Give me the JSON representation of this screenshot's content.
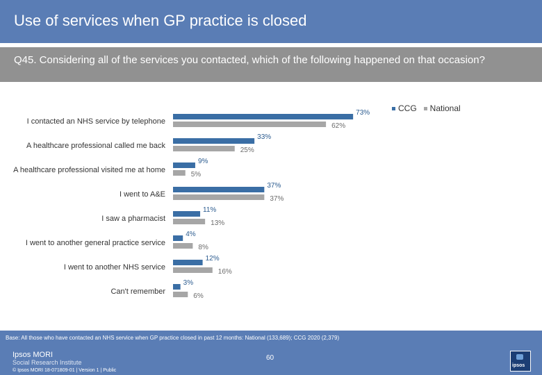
{
  "header": {
    "title": "Use of services when GP practice is closed"
  },
  "question": {
    "text": "Q45. Considering all of the services you contacted, which of the following happened on that occasion?"
  },
  "legend": {
    "ccg_label": "CCG",
    "national_label": "National"
  },
  "colors": {
    "header_bg": "#5a7db5",
    "question_bg": "#919191",
    "ccg": "#3a6ea5",
    "national": "#a6a6a6",
    "ccg_text": "#2b5b8f",
    "national_text": "#6b6b6b"
  },
  "chart_data": {
    "type": "bar",
    "orientation": "horizontal",
    "categories": [
      "I contacted an NHS service by telephone",
      "A healthcare professional called me back",
      "A healthcare professional visited me at home",
      "I went to A&E",
      "I saw a pharmacist",
      "I went to another general practice service",
      "I went to another NHS service",
      "Can't remember"
    ],
    "series": [
      {
        "name": "CCG",
        "values": [
          73,
          33,
          9,
          37,
          11,
          4,
          12,
          3
        ],
        "labels": [
          "73%",
          "33%",
          "9%",
          "37%",
          "11%",
          "4%",
          "12%",
          "3%"
        ]
      },
      {
        "name": "National",
        "values": [
          62,
          25,
          5,
          37,
          13,
          8,
          16,
          6
        ],
        "labels": [
          "62%",
          "25%",
          "5%",
          "37%",
          "13%",
          "8%",
          "16%",
          "6%"
        ]
      }
    ],
    "xlim": [
      0,
      100
    ],
    "grid": false,
    "legend": "top-right"
  },
  "footer": {
    "base_note": "Base: All those who have contacted an NHS service when GP practice closed in past 12 months: National (133,689); CCG 2020 (2,379)",
    "brand_name": "Ipsos MORI",
    "brand_sub": "Social Research Institute",
    "copyright": "© Ipsos MORI     18-071809-01 | Version 1 | Public",
    "page_number": "60",
    "logo_text": "ipsos"
  }
}
